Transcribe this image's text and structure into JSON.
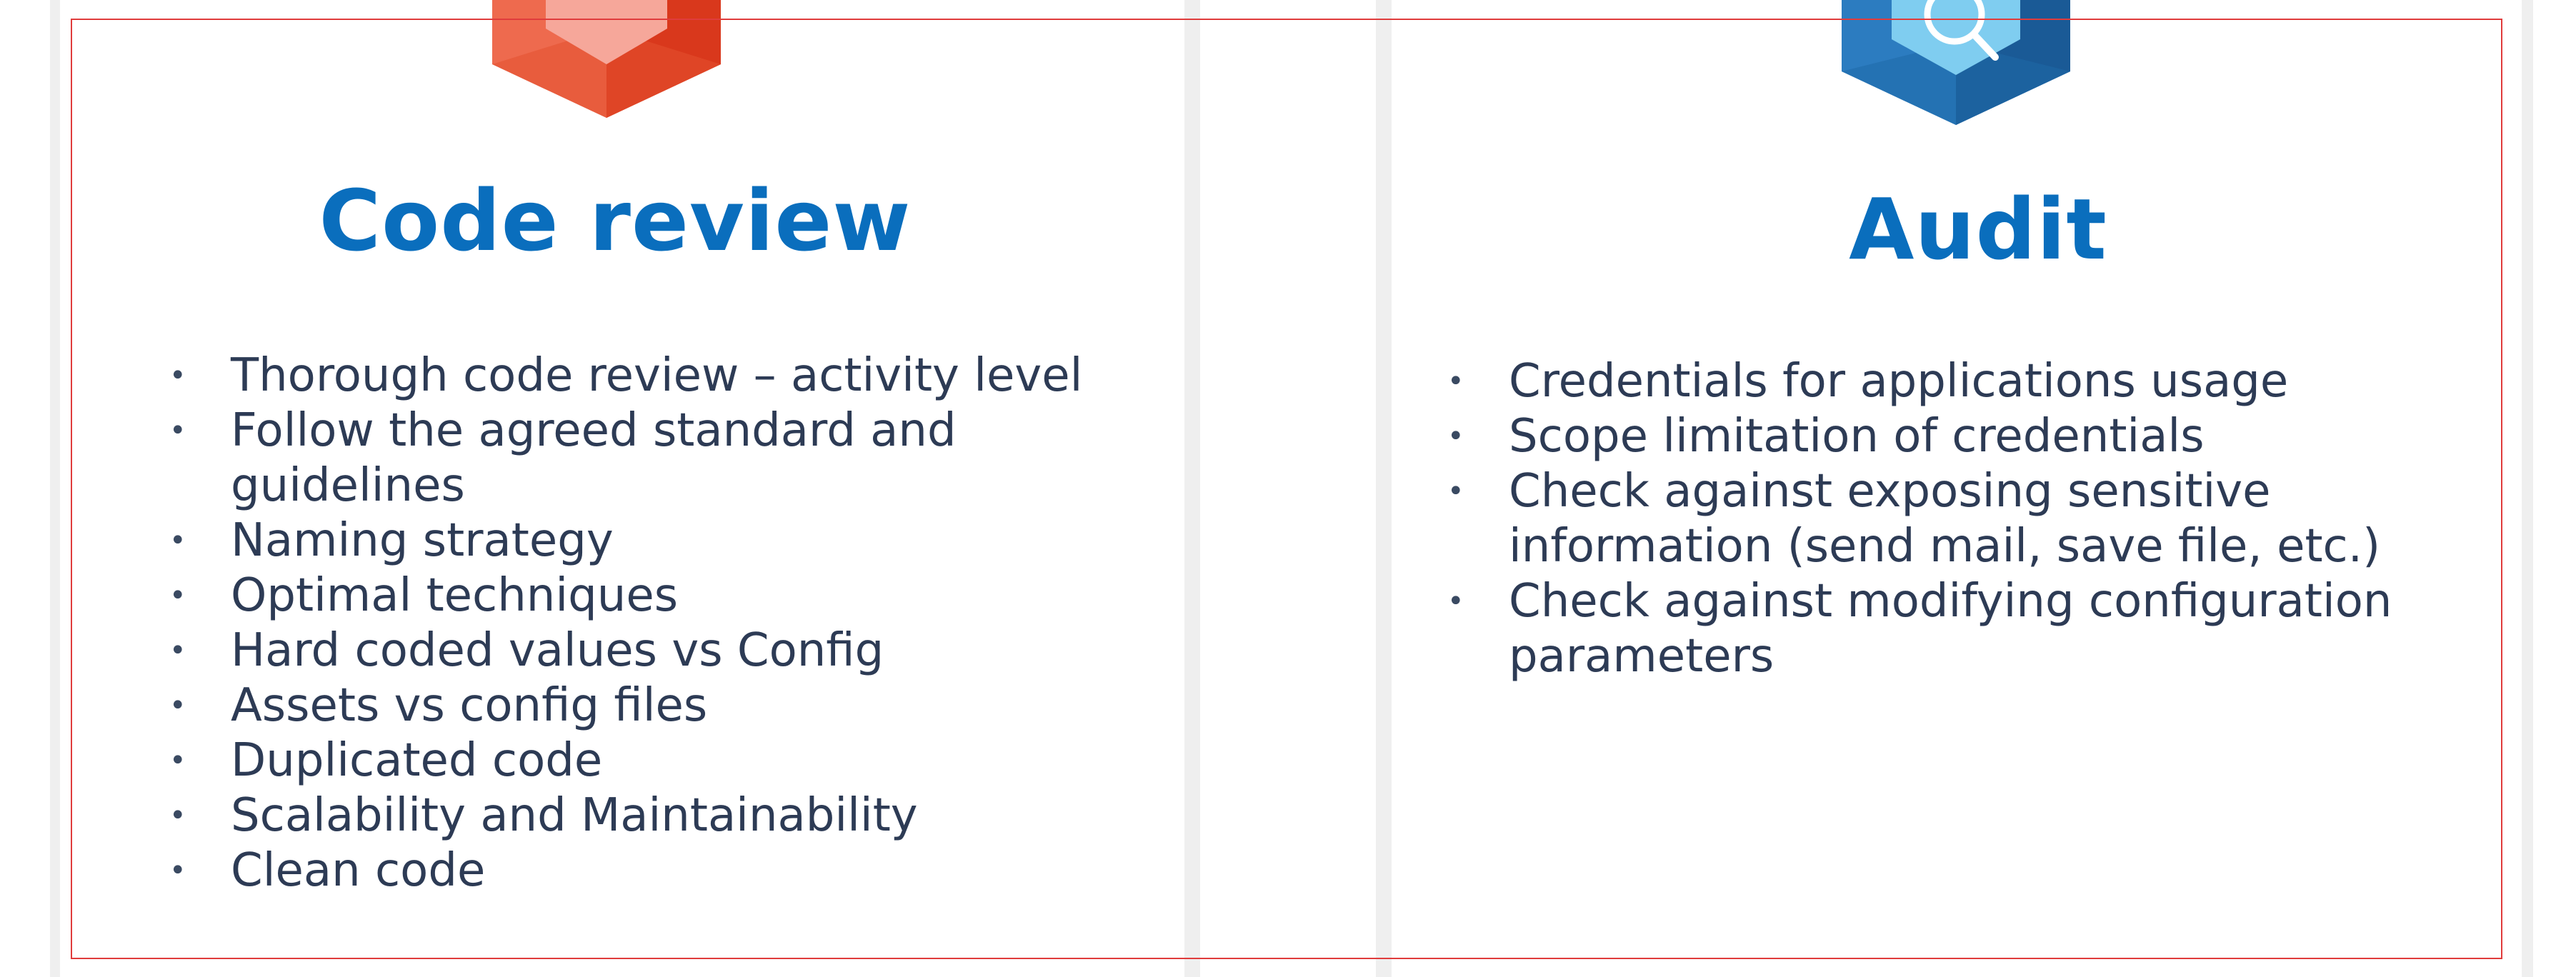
{
  "theme": {
    "title_color": "#0a6ebd",
    "text_color": "#2d3b55",
    "frame_color": "#e03c3c",
    "badge_left_colors": [
      "#ee6a4e",
      "#d9381c",
      "#f6a79a"
    ],
    "badge_right_colors": [
      "#2c7cc0",
      "#1a5a96",
      "#7fcdf0"
    ]
  },
  "sections": [
    {
      "title": "Code review",
      "icon": "code-hexagon-icon",
      "items": [
        "Thorough code review – activity level",
        "Follow the agreed standard and guidelines",
        "Naming strategy",
        "Optimal techniques",
        "Hard coded values vs Config",
        "Assets vs config files",
        "Duplicated code",
        "Scalability and Maintainability",
        "Clean code"
      ]
    },
    {
      "title": "Audit",
      "icon": "magnifier-hexagon-icon",
      "items": [
        "Credentials for applications usage",
        "Scope limitation of credentials",
        "Check against exposing sensitive information (send mail, save file, etc.)",
        "Check against modifying configuration parameters"
      ]
    }
  ]
}
